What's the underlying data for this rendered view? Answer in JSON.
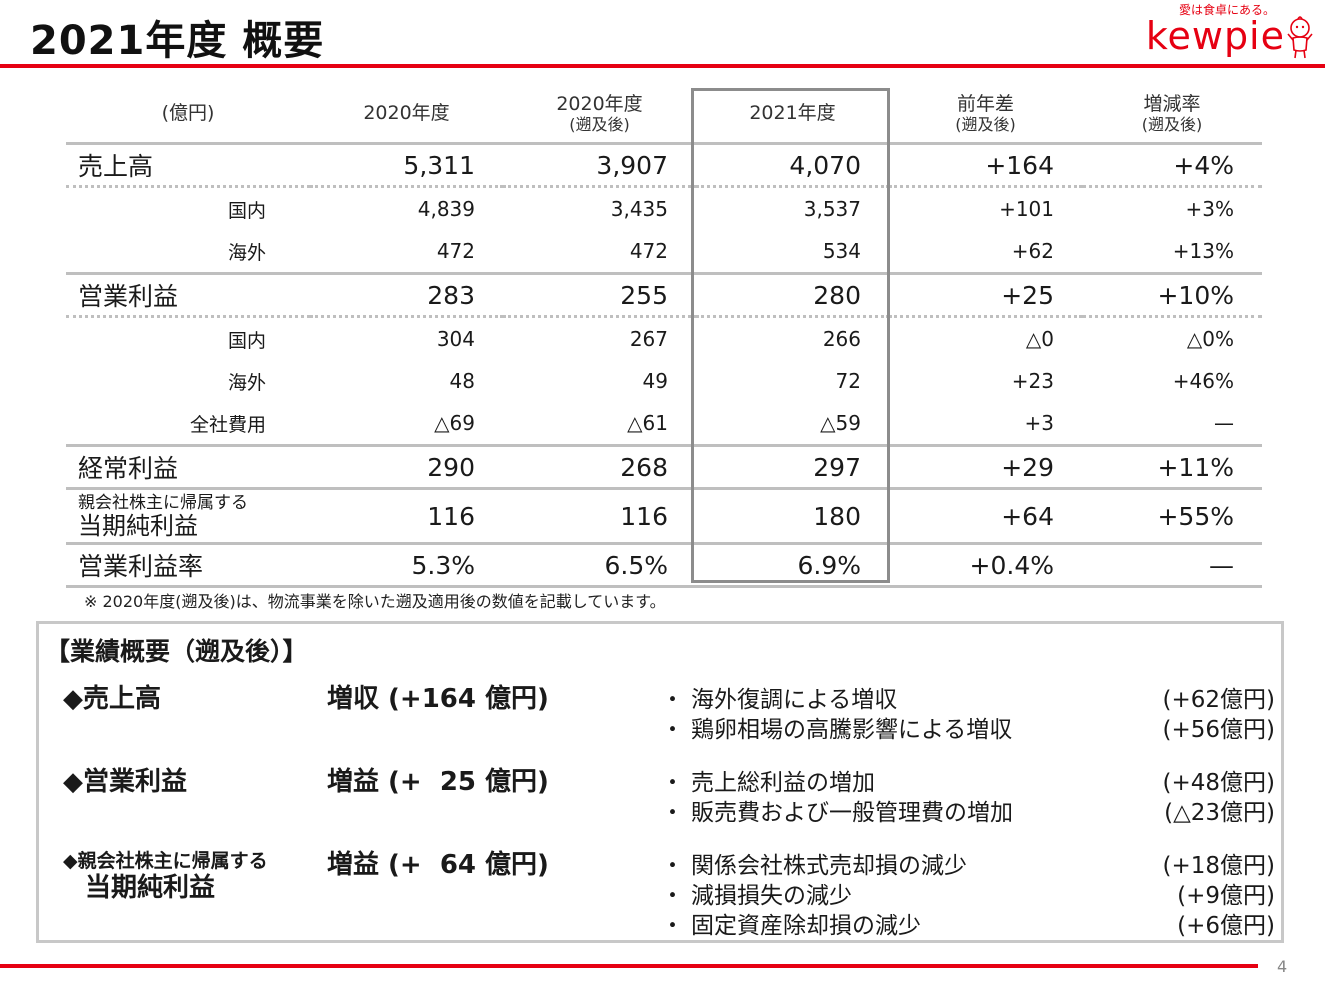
{
  "page": {
    "title": "2021年度 概要",
    "brand_name": "kewpie",
    "brand_tagline": "愛は食卓にある。",
    "page_number": "4",
    "colors": {
      "accent": "#e60012",
      "rule": "#bfbfbf",
      "highlight_border": "#8c8c8c"
    }
  },
  "table": {
    "headers": {
      "unit": "(億円)",
      "fy2020": "2020年度",
      "fy2020_retro": "2020年度",
      "fy2020_retro_sub": "(遡及後)",
      "fy2021": "2021年度",
      "yoy_diff": "前年差",
      "yoy_diff_sub": "(遡及後)",
      "yoy_rate": "増減率",
      "yoy_rate_sub": "(遡及後)"
    },
    "rows": [
      {
        "label": "売上高",
        "v2020": "5,311",
        "v2020r": "3,907",
        "v2021": "4,070",
        "diff": "+164",
        "rate": "+4%"
      },
      {
        "label": "国内",
        "v2020": "4,839",
        "v2020r": "3,435",
        "v2021": "3,537",
        "diff": "+101",
        "rate": "+3%"
      },
      {
        "label": "海外",
        "v2020": "472",
        "v2020r": "472",
        "v2021": "534",
        "diff": "+62",
        "rate": "+13%"
      },
      {
        "label": "営業利益",
        "v2020": "283",
        "v2020r": "255",
        "v2021": "280",
        "diff": "+25",
        "rate": "+10%"
      },
      {
        "label": "国内",
        "v2020": "304",
        "v2020r": "267",
        "v2021": "266",
        "diff": "△0",
        "rate": "△0%"
      },
      {
        "label": "海外",
        "v2020": "48",
        "v2020r": "49",
        "v2021": "72",
        "diff": "+23",
        "rate": "+46%"
      },
      {
        "label": "全社費用",
        "v2020": "△69",
        "v2020r": "△61",
        "v2021": "△59",
        "diff": "+3",
        "rate": "—"
      },
      {
        "label": "経常利益",
        "v2020": "290",
        "v2020r": "268",
        "v2021": "297",
        "diff": "+29",
        "rate": "+11%"
      },
      {
        "label_small": "親会社株主に帰属する",
        "label": "当期純利益",
        "v2020": "116",
        "v2020r": "116",
        "v2021": "180",
        "diff": "+64",
        "rate": "+55%"
      },
      {
        "label": "営業利益率",
        "v2020": "5.3%",
        "v2020r": "6.5%",
        "v2021": "6.9%",
        "diff": "+0.4%",
        "rate": "—"
      }
    ],
    "note": "※ 2020年度(遡及後)は、物流事業を除いた遡及適用後の数値を記載しています。"
  },
  "summary": {
    "heading": "【業績概要（遡及後）】",
    "items": [
      {
        "label": "◆売上高",
        "result": "増収 (+164 億円)",
        "reasons": [
          {
            "text": "海外復調による増収",
            "amount": "(+62億円)"
          },
          {
            "text": "鶏卵相場の高騰影響による増収",
            "amount": "(+56億円)"
          }
        ]
      },
      {
        "label": "◆営業利益",
        "result": "増益 (+  25 億円)",
        "reasons": [
          {
            "text": "売上総利益の増加",
            "amount": "(+48億円)"
          },
          {
            "text": "販売費および一般管理費の増加",
            "amount": "(△23億円)"
          }
        ]
      },
      {
        "label_small": "◆親会社株主に帰属する",
        "label": "当期純利益",
        "result": "増益 (+  64 億円)",
        "reasons": [
          {
            "text": "関係会社株式売却損の減少",
            "amount": "(+18億円)"
          },
          {
            "text": "減損損失の減少",
            "amount": "(+9億円)"
          },
          {
            "text": "固定資産除却損の減少",
            "amount": "(+6億円)"
          }
        ]
      }
    ],
    "bullet": "・"
  }
}
